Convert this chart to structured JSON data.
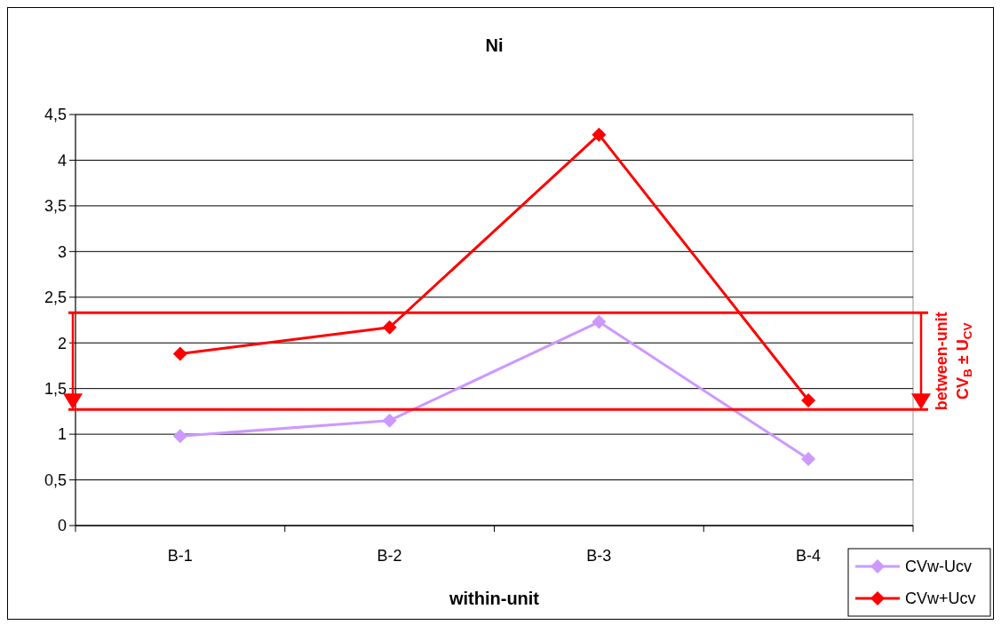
{
  "chart_data": {
    "type": "line",
    "title": "Ni",
    "xlabel": "within-unit",
    "categories": [
      "B-1",
      "B-2",
      "B-3",
      "B-4"
    ],
    "series": [
      {
        "name": "CVw-Ucv",
        "color": "#cc99ff",
        "values": [
          0.98,
          1.15,
          2.23,
          0.73
        ]
      },
      {
        "name": "CVw+Ucv",
        "color": "#ff0000",
        "values": [
          1.88,
          2.17,
          4.28,
          1.37
        ]
      }
    ],
    "ylim": [
      0,
      4.5
    ],
    "yticks": [
      0,
      {
        "value": 0.5,
        "label": "0,5"
      },
      1,
      {
        "value": 1.5,
        "label": "1,5"
      },
      2,
      {
        "value": 2.5,
        "label": "2,5"
      },
      3,
      {
        "value": 3.5,
        "label": "3,5"
      },
      4,
      {
        "value": 4.5,
        "label": "4,5"
      }
    ],
    "ref_lines": [
      {
        "axis": "y",
        "value": 2.33,
        "color": "#ff0000"
      },
      {
        "axis": "y",
        "value": 1.27,
        "color": "#ff0000"
      }
    ],
    "annotations": [
      "between-unit",
      "CV$_{B}$ ± U$_{CV}$"
    ],
    "grid": "y",
    "legend": "bottom right",
    "marker": "diamond",
    "line_style": "solid"
  }
}
